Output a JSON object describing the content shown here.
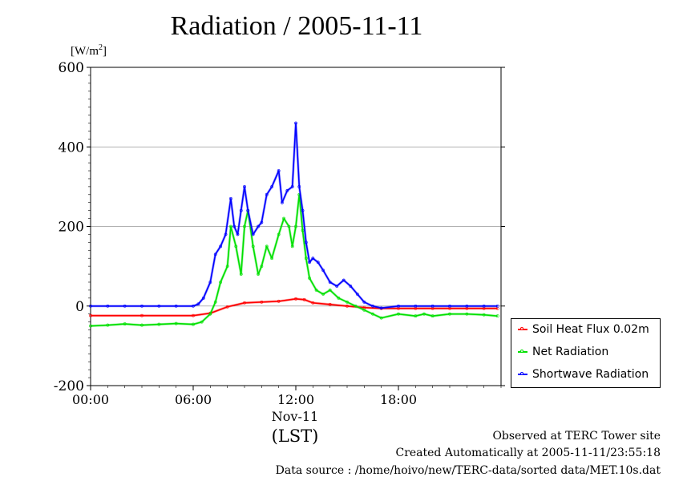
{
  "chart_data": {
    "type": "line",
    "title": "Radiation / 2005-11-11",
    "ylabel": "[W/m",
    "ylabel_sup": "2",
    "ylabel_close": "]",
    "ylim": [
      -200,
      600
    ],
    "yticks": [
      -200,
      0,
      200,
      400,
      600
    ],
    "ytick_labels": [
      "-200",
      "0",
      "200",
      "400",
      "600"
    ],
    "xlim": [
      0,
      24
    ],
    "xticks": [
      0,
      6,
      12,
      18
    ],
    "xtick_labels": [
      "00:00",
      "06:00",
      "12:00",
      "18:00"
    ],
    "date_label": "Nov-11",
    "xlabel": "(LST)",
    "grid": true,
    "legend_position": "right-bottom",
    "series": [
      {
        "name": "Soil Heat Flux 0.02m",
        "color": "#ff0000",
        "x": [
          0,
          3,
          6,
          7,
          8,
          9,
          10,
          11,
          12,
          12.5,
          13,
          14,
          15,
          16,
          17,
          18,
          19,
          20,
          21,
          22,
          23,
          23.8
        ],
        "values": [
          -24,
          -24,
          -24,
          -18,
          -2,
          8,
          10,
          12,
          18,
          16,
          8,
          4,
          0,
          -4,
          -6,
          -6,
          -6,
          -6,
          -6,
          -6,
          -6,
          -6
        ]
      },
      {
        "name": "Net Radiation",
        "color": "#00e000",
        "x": [
          0,
          1,
          2,
          3,
          4,
          5,
          6,
          6.5,
          7,
          7.3,
          7.6,
          8,
          8.2,
          8.5,
          8.8,
          9,
          9.2,
          9.5,
          9.8,
          10,
          10.3,
          10.6,
          11,
          11.3,
          11.6,
          11.8,
          12,
          12.2,
          12.4,
          12.6,
          12.8,
          13.2,
          13.6,
          14,
          14.5,
          15,
          15.5,
          16,
          16.5,
          17,
          18,
          19,
          19.5,
          20,
          21,
          22,
          23,
          23.8
        ],
        "values": [
          -50,
          -48,
          -45,
          -48,
          -46,
          -44,
          -46,
          -40,
          -20,
          10,
          60,
          100,
          200,
          150,
          80,
          200,
          240,
          150,
          80,
          100,
          150,
          120,
          180,
          220,
          200,
          150,
          200,
          280,
          190,
          120,
          70,
          40,
          30,
          40,
          20,
          10,
          0,
          -10,
          -20,
          -30,
          -20,
          -25,
          -20,
          -25,
          -20,
          -20,
          -22,
          -25
        ]
      },
      {
        "name": "Shortwave Radiation",
        "color": "#0000ff",
        "x": [
          0,
          1,
          2,
          3,
          4,
          5,
          6,
          6.3,
          6.6,
          7,
          7.3,
          7.6,
          7.9,
          8.2,
          8.4,
          8.6,
          8.8,
          9,
          9.2,
          9.5,
          9.8,
          10,
          10.3,
          10.6,
          11,
          11.2,
          11.5,
          11.8,
          12,
          12.2,
          12.4,
          12.6,
          12.8,
          13,
          13.3,
          13.6,
          14,
          14.4,
          14.8,
          15.2,
          15.6,
          16,
          16.5,
          17,
          18,
          19,
          20,
          21,
          22,
          23,
          23.8
        ],
        "values": [
          0,
          0,
          0,
          0,
          0,
          0,
          0,
          5,
          20,
          60,
          130,
          150,
          180,
          270,
          200,
          180,
          240,
          300,
          240,
          180,
          200,
          210,
          280,
          300,
          340,
          260,
          290,
          300,
          460,
          300,
          240,
          160,
          110,
          120,
          110,
          90,
          60,
          50,
          65,
          50,
          30,
          10,
          0,
          -5,
          0,
          0,
          0,
          0,
          0,
          0,
          0
        ]
      }
    ],
    "observed_text": "Observed at TERC Tower site",
    "created_text": "Created Automatically at 2005-11-11/23:55:18",
    "source_text": "Data source : /home/hoivo/new/TERC-data/sorted  data/MET.10s.dat"
  }
}
